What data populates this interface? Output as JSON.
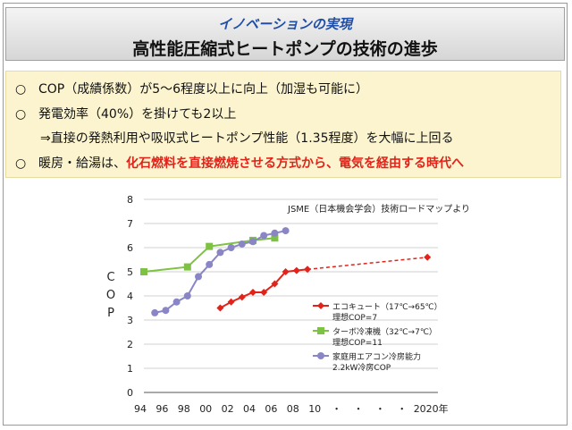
{
  "header": {
    "subtitle": "イノベーションの実現",
    "title": "高性能圧縮式ヒートポンプの技術の進歩"
  },
  "bullets": {
    "mark": "○",
    "line1": "COP（成績係数）が5～6程度以上に向上（加湿も可能に）",
    "line2": "発電効率（40%）を掛けても2以上",
    "line3": "⇒直接の発熱利用や吸収式ヒートポンプ性能（1.35程度）を大幅に上回る",
    "line4_prefix": "暖房・給湯は、",
    "line4_highlight": "化石燃料を直接燃焼させる方式から、電気を経由する時代へ"
  },
  "chart_data": {
    "type": "line",
    "source_note": "JSME（日本機会学会）技術ロードマップより",
    "ylabel": "COP",
    "xlabel": "",
    "ylim": [
      0,
      8
    ],
    "yticks": [
      "0",
      "1",
      "2",
      "3",
      "4",
      "5",
      "6",
      "7",
      "8"
    ],
    "xtick_labels": [
      "94",
      "96",
      "98",
      "00",
      "02",
      "04",
      "06",
      "08",
      "10",
      "・",
      "・",
      "・",
      "・",
      "2020年"
    ],
    "grid": "y",
    "legend_placement": "right",
    "series": [
      {
        "name": "エコキュート（17℃→65℃）",
        "note": "理想COP=7",
        "color": "#e2231a",
        "marker": "diamond",
        "points": [
          [
            2001,
            3.5
          ],
          [
            2002,
            3.75
          ],
          [
            2003,
            3.95
          ],
          [
            2004,
            4.15
          ],
          [
            2005,
            4.15
          ],
          [
            2006,
            4.5
          ],
          [
            2007,
            5.0
          ],
          [
            2008,
            5.05
          ],
          [
            2009,
            5.1
          ]
        ],
        "projection": [
          [
            2009,
            5.1
          ],
          [
            2020,
            5.6
          ]
        ]
      },
      {
        "name": "ターボ冷凍機（32℃→7℃）",
        "note": "理想COP=11",
        "color": "#7dc242",
        "marker": "square",
        "points": [
          [
            1994,
            5.0
          ],
          [
            1998,
            5.2
          ],
          [
            2000,
            6.05
          ],
          [
            2004,
            6.3
          ],
          [
            2006,
            6.4
          ]
        ]
      },
      {
        "name": "家庭用エアコン冷房能力",
        "note": "2.2kW冷房COP",
        "color": "#8a86c6",
        "marker": "circle",
        "points": [
          [
            1995,
            3.3
          ],
          [
            1996,
            3.4
          ],
          [
            1997,
            3.75
          ],
          [
            1998,
            4.0
          ],
          [
            1999,
            4.8
          ],
          [
            2000,
            5.3
          ],
          [
            2001,
            5.8
          ],
          [
            2002,
            6.0
          ],
          [
            2003,
            6.15
          ],
          [
            2004,
            6.25
          ],
          [
            2005,
            6.5
          ],
          [
            2006,
            6.6
          ],
          [
            2007,
            6.7
          ]
        ]
      }
    ]
  }
}
